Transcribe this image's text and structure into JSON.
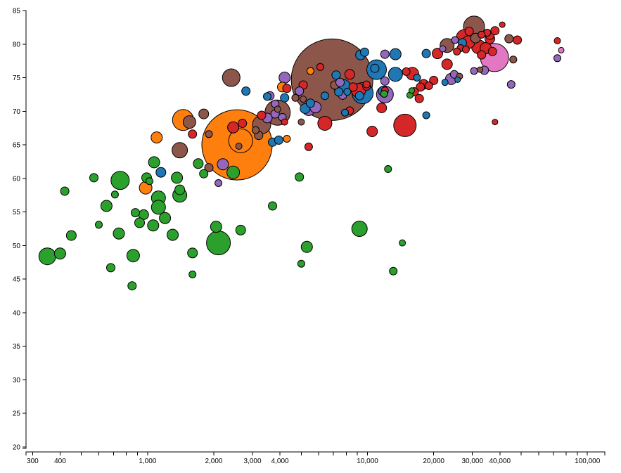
{
  "chart_data": {
    "type": "scatter",
    "title": "",
    "xlabel": "",
    "ylabel": "",
    "x_scale": "log",
    "xlim": [
      280,
      120000
    ],
    "ylim": [
      20,
      85
    ],
    "x_tick_labels": [
      "300",
      "400",
      "1,000",
      "2,000",
      "3,000",
      "4,000",
      "10,000",
      "20,000",
      "30,000",
      "40,000",
      "100,000"
    ],
    "x_tick_values": [
      300,
      400,
      1000,
      2000,
      3000,
      4000,
      10000,
      20000,
      30000,
      40000,
      100000
    ],
    "y_tick_labels": [
      "20",
      "25",
      "30",
      "35",
      "40",
      "45",
      "50",
      "55",
      "60",
      "65",
      "70",
      "75",
      "80",
      "85"
    ],
    "y_tick_values": [
      20,
      25,
      30,
      35,
      40,
      45,
      50,
      55,
      60,
      65,
      70,
      75,
      80,
      85
    ],
    "colors": {
      "orange": "#ff7f0e",
      "green": "#2ca02c",
      "blue": "#1f77b4",
      "red": "#d62728",
      "brown": "#8c564b",
      "purple": "#9467bd",
      "pink": "#e377c2"
    },
    "size_note": "size is relative population (unitless)",
    "points": [
      {
        "x": 2550,
        "y": 65.0,
        "size": 100,
        "color": "orange"
      },
      {
        "x": 6900,
        "y": 74.7,
        "size": 116,
        "color": "brown"
      },
      {
        "x": 37800,
        "y": 78.0,
        "size": 40,
        "color": "pink"
      },
      {
        "x": 30500,
        "y": 82.6,
        "size": 30,
        "color": "brown"
      },
      {
        "x": 2400,
        "y": 75.0,
        "size": 25,
        "color": "brown"
      },
      {
        "x": 1450,
        "y": 68.7,
        "size": 30,
        "color": "orange"
      },
      {
        "x": 1400,
        "y": 64.2,
        "size": 22,
        "color": "brown"
      },
      {
        "x": 3900,
        "y": 69.8,
        "size": 36,
        "color": "brown"
      },
      {
        "x": 3300,
        "y": 68.0,
        "size": 26,
        "color": "brown"
      },
      {
        "x": 14800,
        "y": 67.9,
        "size": 32,
        "color": "red"
      },
      {
        "x": 9500,
        "y": 72.7,
        "size": 30,
        "color": "blue"
      },
      {
        "x": 11000,
        "y": 76.2,
        "size": 28,
        "color": "blue"
      },
      {
        "x": 7700,
        "y": 73.5,
        "size": 24,
        "color": "blue"
      },
      {
        "x": 6400,
        "y": 68.2,
        "size": 20,
        "color": "red"
      },
      {
        "x": 12000,
        "y": 72.5,
        "size": 24,
        "color": "purple"
      },
      {
        "x": 5400,
        "y": 70.3,
        "size": 18,
        "color": "purple"
      },
      {
        "x": 4200,
        "y": 75.0,
        "size": 16,
        "color": "purple"
      },
      {
        "x": 10500,
        "y": 67.0,
        "size": 15,
        "color": "red"
      },
      {
        "x": 13400,
        "y": 75.5,
        "size": 20,
        "color": "blue"
      },
      {
        "x": 9100,
        "y": 73.1,
        "size": 20,
        "color": "red"
      },
      {
        "x": 16000,
        "y": 75.6,
        "size": 18,
        "color": "red"
      },
      {
        "x": 11600,
        "y": 70.5,
        "size": 14,
        "color": "red"
      },
      {
        "x": 13400,
        "y": 78.5,
        "size": 16,
        "color": "blue"
      },
      {
        "x": 8300,
        "y": 75.5,
        "size": 14,
        "color": "red"
      },
      {
        "x": 23000,
        "y": 79.8,
        "size": 20,
        "color": "brown"
      },
      {
        "x": 27500,
        "y": 81.0,
        "size": 22,
        "color": "red"
      },
      {
        "x": 28800,
        "y": 80.3,
        "size": 18,
        "color": "red"
      },
      {
        "x": 32000,
        "y": 79.6,
        "size": 20,
        "color": "red"
      },
      {
        "x": 34500,
        "y": 79.4,
        "size": 16,
        "color": "red"
      },
      {
        "x": 36000,
        "y": 80.8,
        "size": 14,
        "color": "red"
      },
      {
        "x": 24000,
        "y": 74.8,
        "size": 16,
        "color": "purple"
      },
      {
        "x": 20800,
        "y": 78.6,
        "size": 15,
        "color": "red"
      },
      {
        "x": 23000,
        "y": 77.0,
        "size": 15,
        "color": "red"
      },
      {
        "x": 18000,
        "y": 74.0,
        "size": 14,
        "color": "red"
      },
      {
        "x": 27000,
        "y": 80.2,
        "size": 12,
        "color": "blue"
      },
      {
        "x": 31000,
        "y": 80.9,
        "size": 14,
        "color": "brown"
      },
      {
        "x": 33000,
        "y": 78.4,
        "size": 12,
        "color": "red"
      },
      {
        "x": 36000,
        "y": 81.3,
        "size": 12,
        "color": "red"
      },
      {
        "x": 48000,
        "y": 80.6,
        "size": 12,
        "color": "red"
      },
      {
        "x": 44000,
        "y": 80.8,
        "size": 12,
        "color": "brown"
      },
      {
        "x": 41000,
        "y": 82.9,
        "size": 8,
        "color": "red"
      },
      {
        "x": 38000,
        "y": 82.0,
        "size": 12,
        "color": "red"
      },
      {
        "x": 35000,
        "y": 81.7,
        "size": 10,
        "color": "red"
      },
      {
        "x": 33000,
        "y": 81.4,
        "size": 10,
        "color": "red"
      },
      {
        "x": 29000,
        "y": 81.9,
        "size": 12,
        "color": "red"
      },
      {
        "x": 26500,
        "y": 79.4,
        "size": 10,
        "color": "red"
      },
      {
        "x": 25500,
        "y": 78.9,
        "size": 10,
        "color": "red"
      },
      {
        "x": 28000,
        "y": 79.2,
        "size": 10,
        "color": "red"
      },
      {
        "x": 37000,
        "y": 78.9,
        "size": 12,
        "color": "red"
      },
      {
        "x": 46000,
        "y": 77.7,
        "size": 10,
        "color": "brown"
      },
      {
        "x": 25000,
        "y": 80.6,
        "size": 10,
        "color": "purple"
      },
      {
        "x": 22000,
        "y": 79.3,
        "size": 9,
        "color": "purple"
      },
      {
        "x": 34000,
        "y": 76.1,
        "size": 12,
        "color": "purple"
      },
      {
        "x": 32500,
        "y": 76.2,
        "size": 8,
        "color": "brown"
      },
      {
        "x": 30500,
        "y": 76.0,
        "size": 10,
        "color": "purple"
      },
      {
        "x": 45000,
        "y": 74.0,
        "size": 11,
        "color": "purple"
      },
      {
        "x": 38000,
        "y": 68.4,
        "size": 8,
        "color": "red"
      },
      {
        "x": 73000,
        "y": 80.5,
        "size": 9,
        "color": "red"
      },
      {
        "x": 76000,
        "y": 79.1,
        "size": 8,
        "color": "pink"
      },
      {
        "x": 73000,
        "y": 77.9,
        "size": 10,
        "color": "purple"
      },
      {
        "x": 24800,
        "y": 75.5,
        "size": 11,
        "color": "purple"
      },
      {
        "x": 26200,
        "y": 75.2,
        "size": 9,
        "color": "brown"
      },
      {
        "x": 25700,
        "y": 74.7,
        "size": 8,
        "color": "blue"
      },
      {
        "x": 22500,
        "y": 74.3,
        "size": 9,
        "color": "blue"
      },
      {
        "x": 20000,
        "y": 74.6,
        "size": 12,
        "color": "red"
      },
      {
        "x": 19000,
        "y": 73.8,
        "size": 11,
        "color": "red"
      },
      {
        "x": 17400,
        "y": 73.6,
        "size": 12,
        "color": "red"
      },
      {
        "x": 16300,
        "y": 72.9,
        "size": 12,
        "color": "red"
      },
      {
        "x": 17200,
        "y": 71.9,
        "size": 12,
        "color": "red"
      },
      {
        "x": 15000,
        "y": 75.9,
        "size": 11,
        "color": "red"
      },
      {
        "x": 16800,
        "y": 75.0,
        "size": 10,
        "color": "blue"
      },
      {
        "x": 18500,
        "y": 69.4,
        "size": 10,
        "color": "blue"
      },
      {
        "x": 18500,
        "y": 78.6,
        "size": 12,
        "color": "blue"
      },
      {
        "x": 15600,
        "y": 72.4,
        "size": 9,
        "color": "green"
      },
      {
        "x": 15900,
        "y": 73.1,
        "size": 8,
        "color": "green"
      },
      {
        "x": 12000,
        "y": 78.5,
        "size": 12,
        "color": "purple"
      },
      {
        "x": 9700,
        "y": 78.8,
        "size": 12,
        "color": "blue"
      },
      {
        "x": 9300,
        "y": 78.4,
        "size": 14,
        "color": "blue"
      },
      {
        "x": 10800,
        "y": 76.4,
        "size": 12,
        "color": "blue"
      },
      {
        "x": 12000,
        "y": 74.5,
        "size": 12,
        "color": "purple"
      },
      {
        "x": 11800,
        "y": 73.0,
        "size": 14,
        "color": "blue"
      },
      {
        "x": 12000,
        "y": 73.1,
        "size": 10,
        "color": "red"
      },
      {
        "x": 11900,
        "y": 72.6,
        "size": 10,
        "color": "green"
      },
      {
        "x": 9900,
        "y": 73.7,
        "size": 11,
        "color": "red"
      },
      {
        "x": 9200,
        "y": 72.3,
        "size": 12,
        "color": "blue"
      },
      {
        "x": 9900,
        "y": 74.0,
        "size": 10,
        "color": "red"
      },
      {
        "x": 8600,
        "y": 73.6,
        "size": 12,
        "color": "red"
      },
      {
        "x": 8100,
        "y": 72.9,
        "size": 10,
        "color": "blue"
      },
      {
        "x": 7900,
        "y": 69.8,
        "size": 10,
        "color": "blue"
      },
      {
        "x": 8300,
        "y": 70.1,
        "size": 11,
        "color": "red"
      },
      {
        "x": 7700,
        "y": 72.4,
        "size": 12,
        "color": "purple"
      },
      {
        "x": 7400,
        "y": 72.9,
        "size": 12,
        "color": "blue"
      },
      {
        "x": 7100,
        "y": 73.9,
        "size": 12,
        "color": "brown"
      },
      {
        "x": 7200,
        "y": 75.4,
        "size": 12,
        "color": "blue"
      },
      {
        "x": 7500,
        "y": 74.3,
        "size": 12,
        "color": "purple"
      },
      {
        "x": 6400,
        "y": 72.3,
        "size": 11,
        "color": "blue"
      },
      {
        "x": 6100,
        "y": 76.6,
        "size": 10,
        "color": "red"
      },
      {
        "x": 5500,
        "y": 76.0,
        "size": 10,
        "color": "orange"
      },
      {
        "x": 5800,
        "y": 70.6,
        "size": 16,
        "color": "purple"
      },
      {
        "x": 5500,
        "y": 71.2,
        "size": 12,
        "color": "blue"
      },
      {
        "x": 5100,
        "y": 73.9,
        "size": 12,
        "color": "red"
      },
      {
        "x": 4900,
        "y": 73.0,
        "size": 12,
        "color": "purple"
      },
      {
        "x": 5100,
        "y": 71.8,
        "size": 9,
        "color": "brown"
      },
      {
        "x": 5200,
        "y": 70.4,
        "size": 14,
        "color": "blue"
      },
      {
        "x": 4300,
        "y": 73.4,
        "size": 12,
        "color": "red"
      },
      {
        "x": 4100,
        "y": 73.6,
        "size": 14,
        "color": "orange"
      },
      {
        "x": 4700,
        "y": 72.0,
        "size": 10,
        "color": "brown"
      },
      {
        "x": 4200,
        "y": 72.0,
        "size": 12,
        "color": "blue"
      },
      {
        "x": 3800,
        "y": 71.1,
        "size": 11,
        "color": "purple"
      },
      {
        "x": 3600,
        "y": 72.3,
        "size": 12,
        "color": "purple"
      },
      {
        "x": 3500,
        "y": 72.2,
        "size": 11,
        "color": "blue"
      },
      {
        "x": 3300,
        "y": 69.4,
        "size": 12,
        "color": "red"
      },
      {
        "x": 3500,
        "y": 69.0,
        "size": 14,
        "color": "purple"
      },
      {
        "x": 3800,
        "y": 69.6,
        "size": 12,
        "color": "purple"
      },
      {
        "x": 3900,
        "y": 70.3,
        "size": 9,
        "color": "brown"
      },
      {
        "x": 4100,
        "y": 69.1,
        "size": 11,
        "color": "purple"
      },
      {
        "x": 2800,
        "y": 73.0,
        "size": 12,
        "color": "blue"
      },
      {
        "x": 2700,
        "y": 68.2,
        "size": 12,
        "color": "red"
      },
      {
        "x": 2450,
        "y": 67.6,
        "size": 16,
        "color": "red"
      },
      {
        "x": 3100,
        "y": 67.2,
        "size": 10,
        "color": "brown"
      },
      {
        "x": 3200,
        "y": 66.4,
        "size": 12,
        "color": "brown"
      },
      {
        "x": 3700,
        "y": 65.4,
        "size": 12,
        "color": "blue"
      },
      {
        "x": 3950,
        "y": 65.7,
        "size": 12,
        "color": "blue"
      },
      {
        "x": 4300,
        "y": 65.9,
        "size": 10,
        "color": "orange"
      },
      {
        "x": 4200,
        "y": 68.4,
        "size": 9,
        "color": "red"
      },
      {
        "x": 5000,
        "y": 68.4,
        "size": 9,
        "color": "brown"
      },
      {
        "x": 5400,
        "y": 64.7,
        "size": 11,
        "color": "red"
      },
      {
        "x": 2650,
        "y": 65.6,
        "size": 34,
        "color": "orange"
      },
      {
        "x": 2600,
        "y": 64.8,
        "size": 9,
        "color": "brown"
      },
      {
        "x": 1550,
        "y": 68.4,
        "size": 18,
        "color": "brown"
      },
      {
        "x": 1600,
        "y": 66.6,
        "size": 12,
        "color": "red"
      },
      {
        "x": 1800,
        "y": 69.6,
        "size": 14,
        "color": "brown"
      },
      {
        "x": 1900,
        "y": 66.6,
        "size": 10,
        "color": "brown"
      },
      {
        "x": 1900,
        "y": 61.6,
        "size": 12,
        "color": "brown"
      },
      {
        "x": 2200,
        "y": 62.1,
        "size": 16,
        "color": "purple"
      },
      {
        "x": 2100,
        "y": 59.3,
        "size": 10,
        "color": "purple"
      },
      {
        "x": 2450,
        "y": 60.9,
        "size": 18,
        "color": "green"
      },
      {
        "x": 1100,
        "y": 66.1,
        "size": 16,
        "color": "orange"
      },
      {
        "x": 1070,
        "y": 62.4,
        "size": 16,
        "color": "green"
      },
      {
        "x": 1150,
        "y": 60.9,
        "size": 14,
        "color": "blue"
      },
      {
        "x": 1360,
        "y": 60.1,
        "size": 16,
        "color": "green"
      },
      {
        "x": 1400,
        "y": 58.3,
        "size": 14,
        "color": "green"
      },
      {
        "x": 1400,
        "y": 57.5,
        "size": 20,
        "color": "green"
      },
      {
        "x": 1700,
        "y": 62.2,
        "size": 14,
        "color": "green"
      },
      {
        "x": 1800,
        "y": 60.7,
        "size": 12,
        "color": "green"
      },
      {
        "x": 980,
        "y": 58.6,
        "size": 18,
        "color": "orange"
      },
      {
        "x": 990,
        "y": 60.1,
        "size": 14,
        "color": "green"
      },
      {
        "x": 1020,
        "y": 59.6,
        "size": 10,
        "color": "green"
      },
      {
        "x": 750,
        "y": 59.7,
        "size": 26,
        "color": "green"
      },
      {
        "x": 710,
        "y": 57.6,
        "size": 10,
        "color": "green"
      },
      {
        "x": 570,
        "y": 60.1,
        "size": 12,
        "color": "green"
      },
      {
        "x": 420,
        "y": 58.1,
        "size": 12,
        "color": "green"
      },
      {
        "x": 1120,
        "y": 57.1,
        "size": 20,
        "color": "green"
      },
      {
        "x": 1120,
        "y": 55.7,
        "size": 20,
        "color": "green"
      },
      {
        "x": 1200,
        "y": 54.1,
        "size": 16,
        "color": "green"
      },
      {
        "x": 960,
        "y": 54.6,
        "size": 14,
        "color": "green"
      },
      {
        "x": 920,
        "y": 53.4,
        "size": 14,
        "color": "green"
      },
      {
        "x": 880,
        "y": 54.9,
        "size": 12,
        "color": "green"
      },
      {
        "x": 1060,
        "y": 53.0,
        "size": 16,
        "color": "green"
      },
      {
        "x": 1300,
        "y": 51.6,
        "size": 16,
        "color": "green"
      },
      {
        "x": 650,
        "y": 55.9,
        "size": 16,
        "color": "green"
      },
      {
        "x": 600,
        "y": 53.1,
        "size": 10,
        "color": "green"
      },
      {
        "x": 740,
        "y": 51.8,
        "size": 16,
        "color": "green"
      },
      {
        "x": 450,
        "y": 51.5,
        "size": 14,
        "color": "green"
      },
      {
        "x": 2050,
        "y": 52.8,
        "size": 16,
        "color": "green"
      },
      {
        "x": 2650,
        "y": 52.3,
        "size": 14,
        "color": "green"
      },
      {
        "x": 2100,
        "y": 50.4,
        "size": 34,
        "color": "green"
      },
      {
        "x": 1600,
        "y": 48.9,
        "size": 14,
        "color": "green"
      },
      {
        "x": 400,
        "y": 48.8,
        "size": 16,
        "color": "green"
      },
      {
        "x": 350,
        "y": 48.4,
        "size": 24,
        "color": "green"
      },
      {
        "x": 860,
        "y": 48.5,
        "size": 18,
        "color": "green"
      },
      {
        "x": 680,
        "y": 46.7,
        "size": 12,
        "color": "green"
      },
      {
        "x": 1600,
        "y": 45.7,
        "size": 10,
        "color": "green"
      },
      {
        "x": 850,
        "y": 44.0,
        "size": 12,
        "color": "green"
      },
      {
        "x": 3700,
        "y": 55.9,
        "size": 12,
        "color": "green"
      },
      {
        "x": 4900,
        "y": 60.2,
        "size": 12,
        "color": "green"
      },
      {
        "x": 5300,
        "y": 49.8,
        "size": 16,
        "color": "green"
      },
      {
        "x": 5000,
        "y": 47.3,
        "size": 10,
        "color": "green"
      },
      {
        "x": 9200,
        "y": 52.5,
        "size": 22,
        "color": "green"
      },
      {
        "x": 12400,
        "y": 61.4,
        "size": 10,
        "color": "green"
      },
      {
        "x": 14400,
        "y": 50.4,
        "size": 9,
        "color": "green"
      },
      {
        "x": 13100,
        "y": 46.2,
        "size": 11,
        "color": "green"
      }
    ]
  }
}
